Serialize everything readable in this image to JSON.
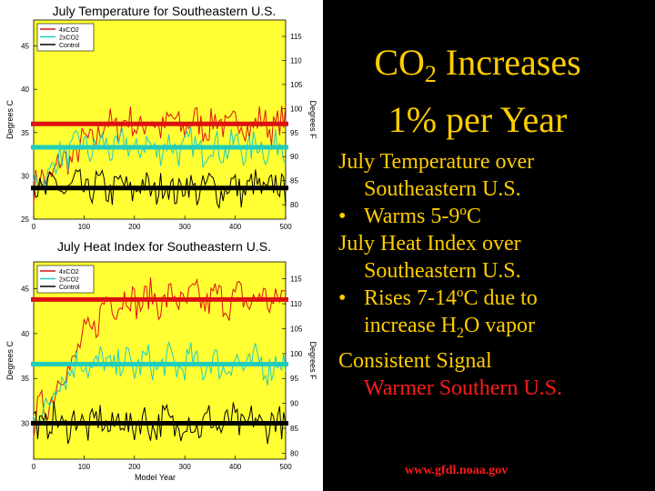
{
  "slide": {
    "title_pre": "CO",
    "title_sub": "2",
    "title_post": " Increases",
    "title_line2": "1% per Year",
    "bullet_lines": {
      "l1": "July Temperature over",
      "l2": "Southeastern U.S.",
      "l3": "Warms 5-9ºC",
      "l4": "July Heat Index over",
      "l5": "Southeastern U.S.",
      "l6": "Rises 7-14ºC due to",
      "l7a": "increase H",
      "l7b": "2",
      "l7c": "O vapor",
      "l8": "Consistent Signal",
      "l9": "Warmer Southern U.S."
    },
    "source": "www.gfdl.noaa.gov",
    "colors": {
      "background": "#000000",
      "text": "#FFCC00",
      "accent": "#FF1A1A",
      "plot_bg": "#FFFF33"
    }
  },
  "chart_data": [
    {
      "type": "line",
      "title": "July Temperature for Southeastern U.S.",
      "xlabel": "",
      "ylabel": "Degrees C",
      "ylabel_right": "Degrees F",
      "xlim": [
        0,
        500
      ],
      "ylim": [
        25,
        48
      ],
      "xticks": [
        "0",
        "100",
        "200",
        "300",
        "400",
        "500"
      ],
      "yticks_left": [
        "25",
        "30",
        "35",
        "40",
        "45"
      ],
      "yticks_right": [
        "80",
        "85",
        "90",
        "95",
        "100",
        "105",
        "110",
        "115"
      ],
      "legend": {
        "position": "top-left",
        "entries": [
          "4xCO2",
          "2xCO2",
          "Control"
        ]
      },
      "series": [
        {
          "name": "4xCO2",
          "color": "#DD1111",
          "mean_level": 36.0
        },
        {
          "name": "2xCO2",
          "color": "#22CCBB",
          "mean_level": 33.3
        },
        {
          "name": "Control",
          "color": "#000000",
          "mean_level": 28.6
        }
      ]
    },
    {
      "type": "line",
      "title": "July Heat Index for Southeastern U.S.",
      "xlabel": "Model Year",
      "ylabel": "Degrees C",
      "ylabel_right": "Degrees F",
      "xlim": [
        0,
        500
      ],
      "ylim": [
        26,
        48
      ],
      "xticks": [
        "0",
        "100",
        "200",
        "300",
        "400",
        "500"
      ],
      "yticks_left": [
        "30",
        "35",
        "40",
        "45"
      ],
      "yticks_right": [
        "80",
        "85",
        "90",
        "95",
        "100",
        "105",
        "110",
        "115"
      ],
      "legend": {
        "position": "top-left",
        "entries": [
          "4xCO2",
          "2xCO2",
          "Control"
        ]
      },
      "series": [
        {
          "name": "4xCO2",
          "color": "#DD1111",
          "mean_level": 43.8
        },
        {
          "name": "2xCO2",
          "color": "#22CCBB",
          "mean_level": 36.6
        },
        {
          "name": "Control",
          "color": "#000000",
          "mean_level": 30.0
        }
      ]
    }
  ]
}
